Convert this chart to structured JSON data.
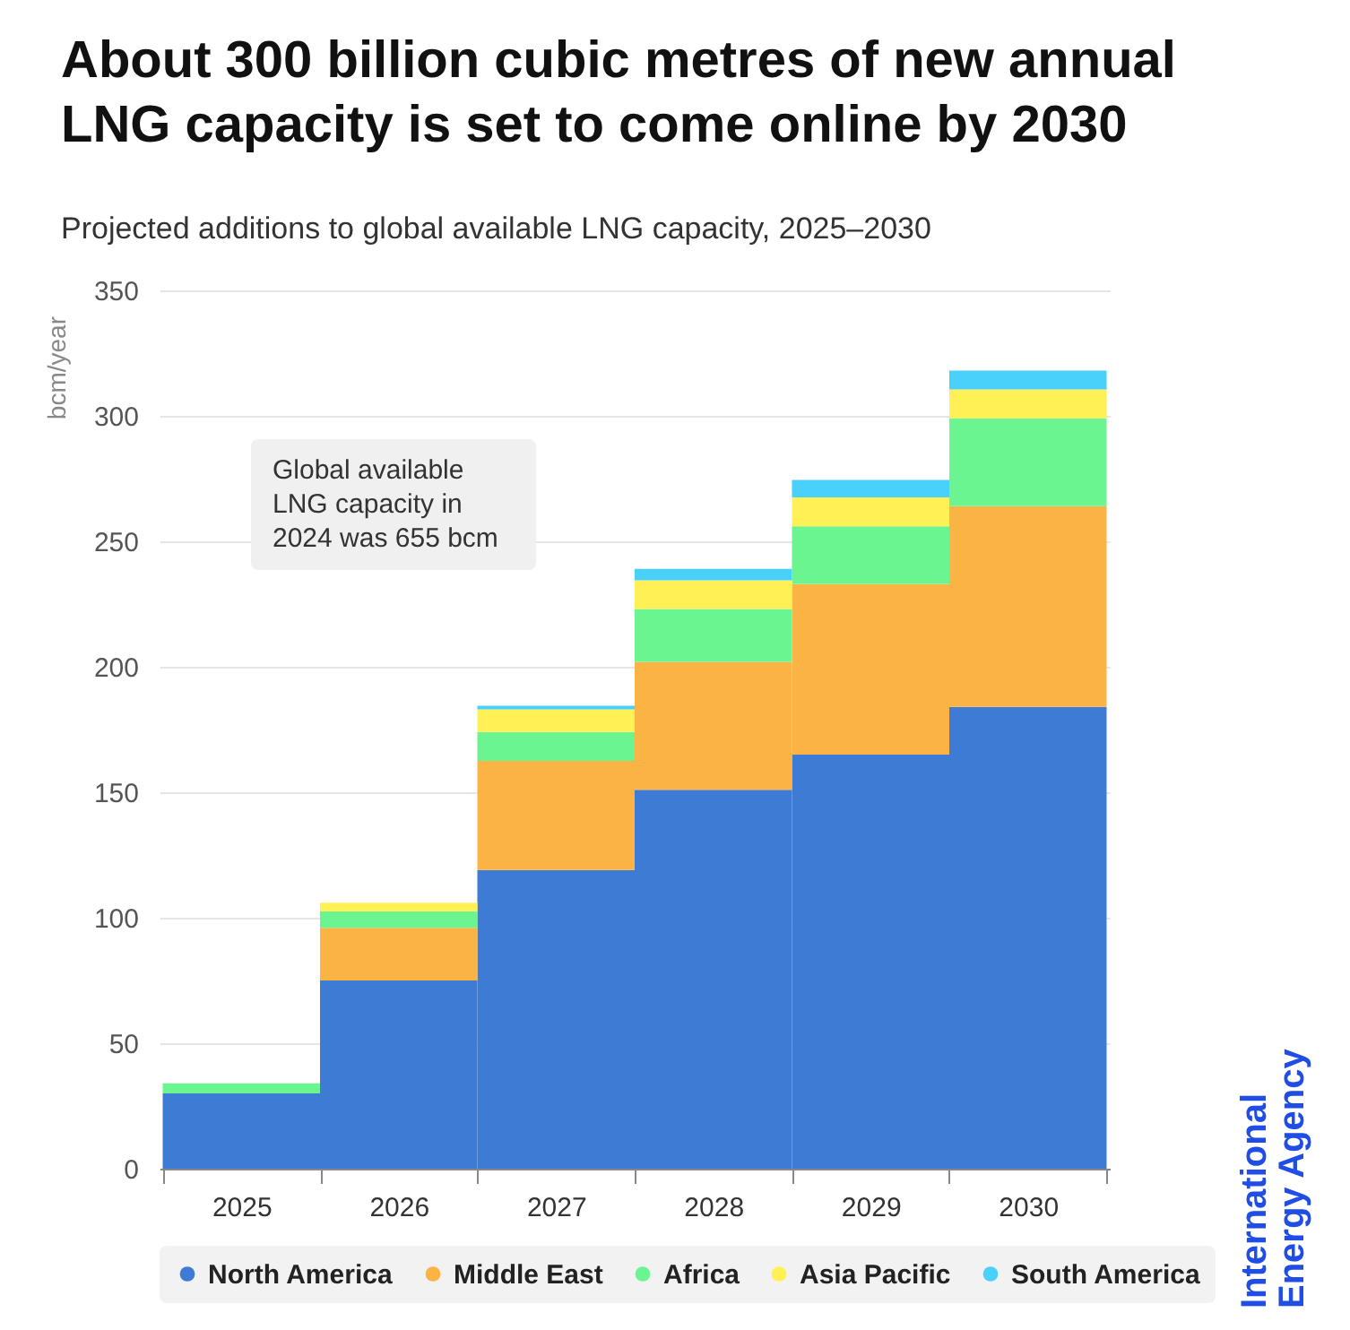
{
  "chart_data": {
    "type": "bar",
    "stacked": true,
    "title": "About 300 billion cubic metres of new annual LNG capacity is set to come online by 2030",
    "subtitle": "Projected additions to global available LNG capacity, 2025–2030",
    "ylabel": "bcm/year",
    "categories": [
      "2025",
      "2026",
      "2027",
      "2028",
      "2029",
      "2030"
    ],
    "series": [
      {
        "name": "North America",
        "color": "#3e7bd4",
        "values": [
          30,
          75,
          119,
          151,
          165,
          184
        ]
      },
      {
        "name": "Middle East",
        "color": "#fbb344",
        "values": [
          0,
          21,
          43.5,
          51,
          68,
          80
        ]
      },
      {
        "name": "Africa",
        "color": "#6af591",
        "values": [
          4,
          6.5,
          11.5,
          21,
          23,
          35
        ]
      },
      {
        "name": "Asia Pacific",
        "color": "#fff055",
        "values": [
          0,
          3.5,
          9,
          11.5,
          11.5,
          11.5
        ]
      },
      {
        "name": "South America",
        "color": "#49d0fb",
        "values": [
          0,
          0,
          1.5,
          4.5,
          7,
          7.5
        ]
      }
    ],
    "ylim": [
      0,
      350
    ],
    "yticks": [
      0,
      50,
      100,
      150,
      200,
      250,
      300,
      350
    ],
    "grid": "y",
    "legend": "bottom",
    "annotations": [
      "Global available LNG capacity in 2024 was 655 bcm",
      "International Energy Agency"
    ]
  }
}
